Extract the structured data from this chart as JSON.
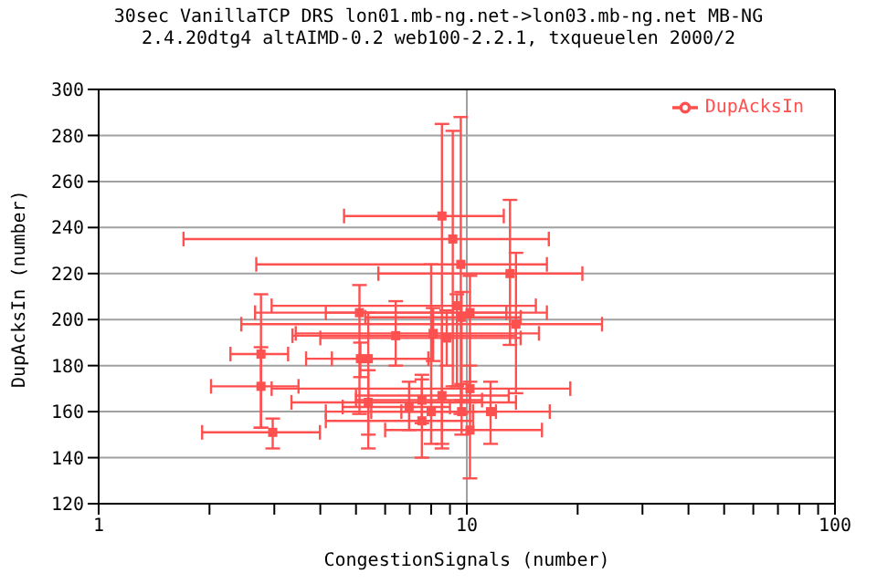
{
  "chart_data": {
    "type": "scatter",
    "title": "30sec VanillaTCP DRS lon01.mb-ng.net->lon03.mb-ng.net MB-NG\n2.4.20dtg4 altAIMD-0.2 web100-2.2.1, txqueuelen 2000/2",
    "xlabel": "CongestionSignals (number)",
    "ylabel": "DupAcksIn (number)",
    "log": "x",
    "xlim": [
      1,
      100
    ],
    "xticks": [
      1,
      {
        "value": 2,
        "label": null
      },
      {
        "value": 3,
        "label": null
      },
      {
        "value": 4,
        "label": null
      },
      {
        "value": 5,
        "label": null
      },
      {
        "value": 6,
        "label": null
      },
      {
        "value": 7,
        "label": null
      },
      {
        "value": 8,
        "label": null
      },
      {
        "value": 9,
        "label": null
      },
      10,
      {
        "value": 20,
        "label": null
      },
      {
        "value": 30,
        "label": null
      },
      {
        "value": 40,
        "label": null
      },
      {
        "value": 50,
        "label": null
      },
      {
        "value": 60,
        "label": null
      },
      {
        "value": 70,
        "label": null
      },
      {
        "value": 80,
        "label": null
      },
      {
        "value": 90,
        "label": null
      },
      100
    ],
    "ylim": [
      120,
      300
    ],
    "yticks": [
      120,
      140,
      160,
      180,
      200,
      220,
      240,
      260,
      280,
      300
    ],
    "grid": true,
    "legend": "top right",
    "marker": "square",
    "series": [
      {
        "name": "DupAcksIn",
        "color": "#ff5050",
        "x": [
          8.56,
          9.16,
          9.63,
          13.1,
          9.4,
          10.2,
          9.68,
          13.6,
          5.11,
          6.41,
          2.76,
          5.14,
          5.4,
          2.76,
          5.4,
          6.97,
          7.55,
          8.0,
          7.55,
          2.97,
          8.56,
          10.2,
          10.2,
          11.6,
          9.68,
          8.1,
          8.82
        ],
        "values": [
          245,
          235,
          224,
          220,
          206,
          203,
          201,
          198,
          203,
          193,
          185,
          183,
          183,
          171,
          164,
          162,
          165,
          160,
          156,
          151,
          167,
          170,
          152,
          160,
          160,
          194,
          192
        ],
        "xerrors": [
          [
            4.64,
            12.6
          ],
          [
            1.7,
            16.7
          ],
          [
            2.68,
            16.5
          ],
          [
            5.75,
            20.6
          ],
          [
            2.95,
            15.4
          ],
          [
            4.14,
            16.5
          ],
          [
            5.3,
            14
          ],
          [
            2.44,
            23.3
          ],
          [
            2.66,
            12.8
          ],
          [
            3.36,
            13.6
          ],
          [
            2.28,
            3.27
          ],
          [
            3.66,
            7.86
          ],
          [
            4.3,
            8
          ],
          [
            2.02,
            3.49
          ],
          [
            3.34,
            13.6
          ],
          [
            4.6,
            9
          ],
          [
            5,
            11
          ],
          [
            4.14,
            10.4
          ],
          [
            4.14,
            10.4
          ],
          [
            1.91,
            3.99
          ],
          [
            5,
            13
          ],
          [
            2.95,
            19.1
          ],
          [
            6,
            16
          ],
          [
            6.64,
            16.8
          ],
          [
            5.5,
            12
          ],
          [
            3.43,
            15.7
          ],
          [
            4,
            14
          ]
        ],
        "errors": [
          [
            144,
            285
          ],
          [
            171,
            282
          ],
          [
            159,
            288
          ],
          [
            189,
            252
          ],
          [
            171,
            211
          ],
          [
            164,
            219
          ],
          [
            165,
            212
          ],
          [
            168,
            229
          ],
          [
            159,
            215
          ],
          [
            180,
            208
          ],
          [
            153,
            211
          ],
          [
            175,
            190
          ],
          [
            144,
            203
          ],
          [
            153,
            188
          ],
          [
            150,
            178
          ],
          [
            152,
            173
          ],
          [
            155,
            176
          ],
          [
            146,
            224
          ],
          [
            140,
            174
          ],
          [
            144,
            157
          ],
          [
            146,
            198
          ],
          [
            160,
            180
          ],
          [
            131,
            173
          ],
          [
            146,
            173
          ],
          [
            150,
            172
          ],
          [
            182,
            205
          ],
          [
            180,
            204
          ]
        ]
      }
    ]
  }
}
